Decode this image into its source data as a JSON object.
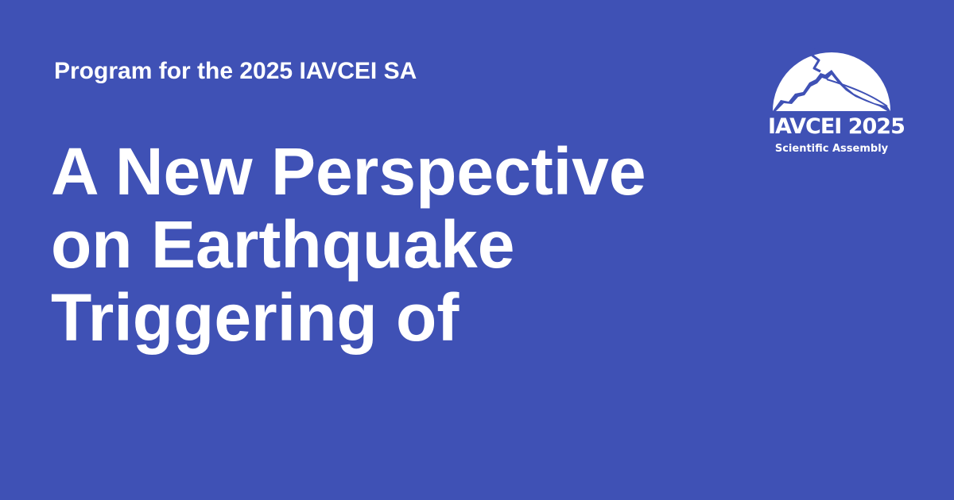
{
  "colors": {
    "background": "#3f51b5",
    "text": "#ffffff"
  },
  "header": {
    "kicker": "Program for the 2025 IAVCEI SA"
  },
  "title": {
    "lines": [
      "A New Perspective",
      "on Earthquake",
      "Triggering of"
    ]
  },
  "logo": {
    "icon": "volcano-mountain-icon",
    "name": "IAVCEI 2025",
    "subtitle": "Scientific Assembly"
  }
}
